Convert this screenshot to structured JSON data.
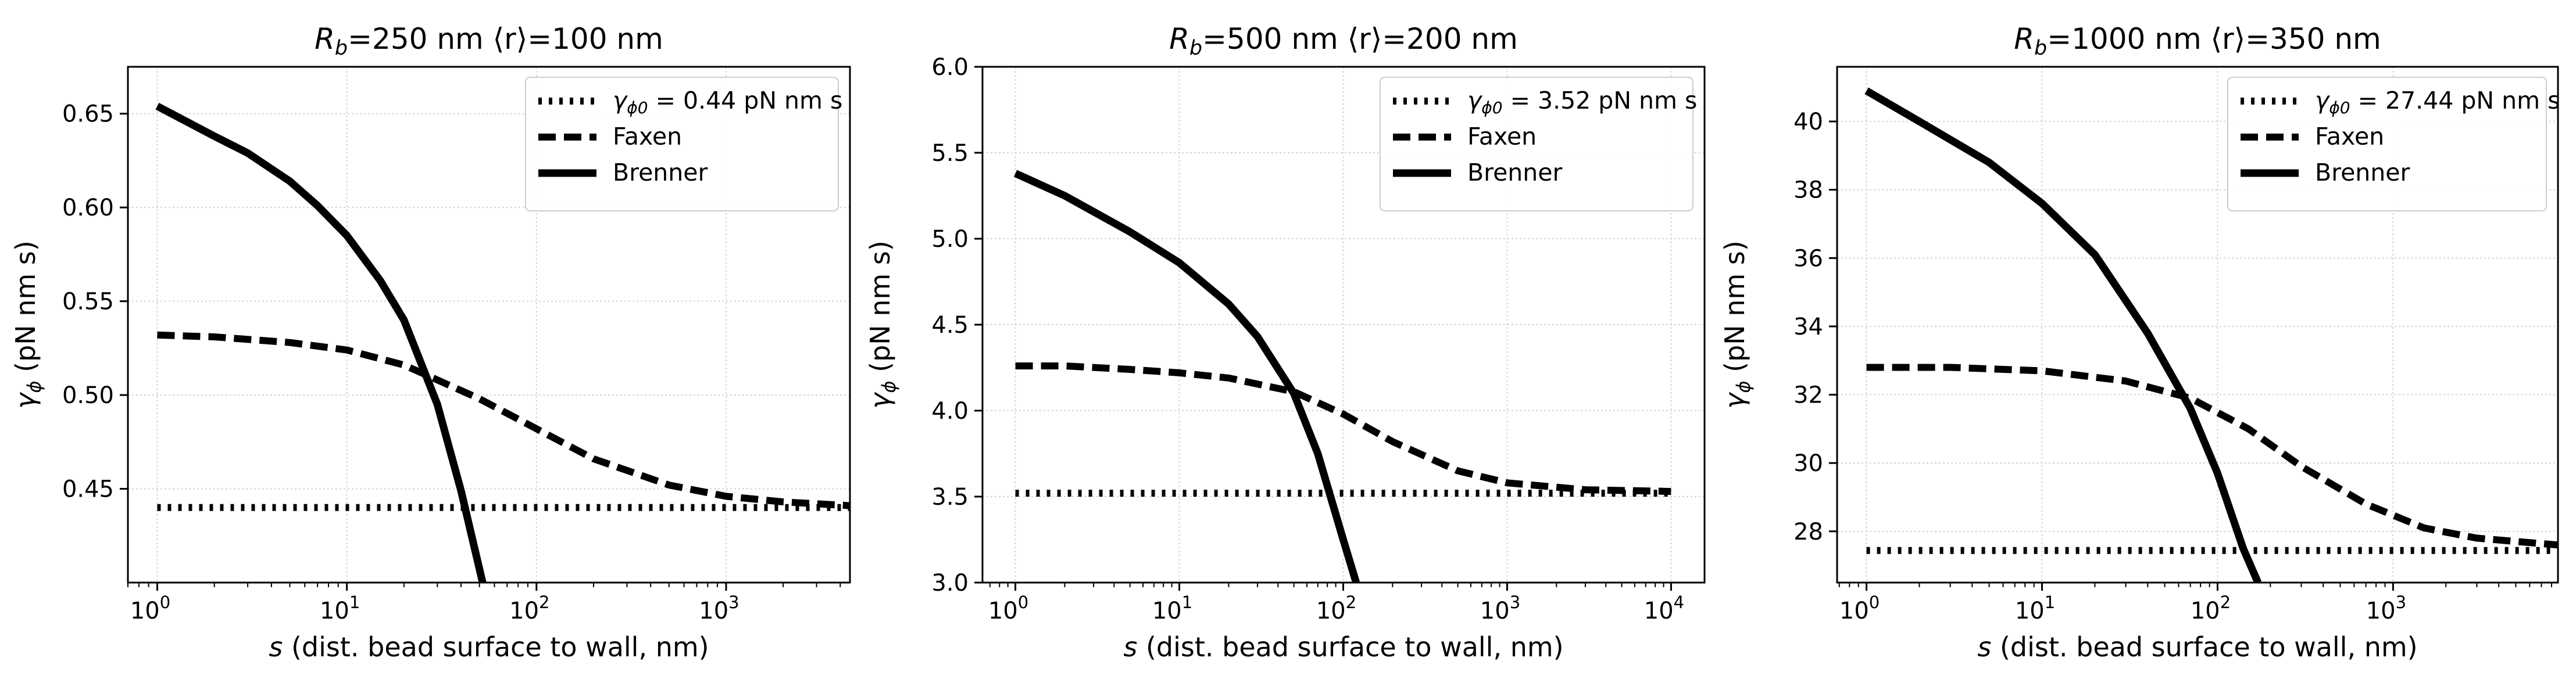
{
  "figure": {
    "titles": [
      "R_b=250 nm  ⟨r⟩=100 nm",
      "R_b=500 nm  ⟨r⟩=200 nm",
      "R_b=1000 nm  ⟨r⟩=350 nm"
    ]
  },
  "chart_data": [
    {
      "type": "line",
      "title": {
        "R": "R",
        "sub": "b",
        "rest": "=250 nm  ⟨r⟩=100 nm"
      },
      "xlabel": {
        "s": "s",
        "rest": " (dist. bead surface to wall, nm)"
      },
      "ylabel": {
        "gamma": "γ",
        "sub": "ϕ",
        "rest": " (pN nm s)"
      },
      "xscale": "log",
      "xlim": [
        0.7,
        4500
      ],
      "ylim": [
        0.4,
        0.675
      ],
      "xticks": [
        {
          "v": 1,
          "e": "0"
        },
        {
          "v": 10,
          "e": "1"
        },
        {
          "v": 100,
          "e": "2"
        },
        {
          "v": 1000,
          "e": "3"
        }
      ],
      "yticks": [
        {
          "v": 0.45,
          "label": "0.45"
        },
        {
          "v": 0.5,
          "label": "0.50"
        },
        {
          "v": 0.55,
          "label": "0.55"
        },
        {
          "v": 0.6,
          "label": "0.60"
        },
        {
          "v": 0.65,
          "label": "0.65"
        }
      ],
      "grid": true,
      "legend_position": "top-right",
      "legend": [
        {
          "style": "dotted",
          "gamma": "γ",
          "sub": "ϕ0",
          "rest": " = 0.44 pN nm s"
        },
        {
          "style": "dashed",
          "label": "Faxen"
        },
        {
          "style": "solid",
          "label": "Brenner"
        }
      ],
      "series": [
        {
          "name": "gamma_phi0",
          "style": "dotted",
          "x": [
            1,
            4500
          ],
          "y": [
            0.44,
            0.44
          ]
        },
        {
          "name": "Faxen",
          "style": "dashed",
          "x": [
            1,
            2,
            5,
            10,
            20,
            50,
            100,
            200,
            500,
            1000,
            2000,
            4500
          ],
          "y": [
            0.532,
            0.531,
            0.528,
            0.524,
            0.516,
            0.498,
            0.482,
            0.466,
            0.452,
            0.446,
            0.443,
            0.441
          ]
        },
        {
          "name": "Brenner",
          "style": "solid",
          "x": [
            1,
            2,
            3,
            5,
            7,
            10,
            15,
            20,
            30,
            40,
            52
          ],
          "y": [
            0.654,
            0.638,
            0.629,
            0.614,
            0.601,
            0.585,
            0.561,
            0.54,
            0.495,
            0.449,
            0.4
          ]
        }
      ]
    },
    {
      "type": "line",
      "title": {
        "R": "R",
        "sub": "b",
        "rest": "=500 nm  ⟨r⟩=200 nm"
      },
      "xlabel": {
        "s": "s",
        "rest": " (dist. bead surface to wall, nm)"
      },
      "ylabel": {
        "gamma": "γ",
        "sub": "ϕ",
        "rest": " (pN nm s)"
      },
      "xscale": "log",
      "xlim": [
        0.63,
        16000
      ],
      "ylim": [
        3.0,
        6.0
      ],
      "xticks": [
        {
          "v": 1,
          "e": "0"
        },
        {
          "v": 10,
          "e": "1"
        },
        {
          "v": 100,
          "e": "2"
        },
        {
          "v": 1000,
          "e": "3"
        },
        {
          "v": 10000,
          "e": "4"
        }
      ],
      "yticks": [
        {
          "v": 3.0,
          "label": "3.0"
        },
        {
          "v": 3.5,
          "label": "3.5"
        },
        {
          "v": 4.0,
          "label": "4.0"
        },
        {
          "v": 4.5,
          "label": "4.5"
        },
        {
          "v": 5.0,
          "label": "5.0"
        },
        {
          "v": 5.5,
          "label": "5.5"
        },
        {
          "v": 6.0,
          "label": "6.0"
        }
      ],
      "grid": true,
      "legend_position": "top-right",
      "legend": [
        {
          "style": "dotted",
          "gamma": "γ",
          "sub": "ϕ0",
          "rest": " = 3.52 pN nm s"
        },
        {
          "style": "dashed",
          "label": "Faxen"
        },
        {
          "style": "solid",
          "label": "Brenner"
        }
      ],
      "series": [
        {
          "name": "gamma_phi0",
          "style": "dotted",
          "x": [
            1,
            10000
          ],
          "y": [
            3.52,
            3.52
          ]
        },
        {
          "name": "Faxen",
          "style": "dashed",
          "x": [
            1,
            2,
            5,
            10,
            20,
            50,
            100,
            200,
            500,
            1000,
            3000,
            10000
          ],
          "y": [
            4.26,
            4.26,
            4.24,
            4.22,
            4.19,
            4.11,
            3.98,
            3.82,
            3.65,
            3.58,
            3.54,
            3.53
          ]
        },
        {
          "name": "Brenner",
          "style": "solid",
          "x": [
            1,
            2,
            5,
            10,
            20,
            30,
            50,
            70,
            100,
            120
          ],
          "y": [
            5.38,
            5.25,
            5.04,
            4.86,
            4.62,
            4.43,
            4.1,
            3.75,
            3.25,
            3.0
          ]
        }
      ]
    },
    {
      "type": "line",
      "title": {
        "R": "R",
        "sub": "b",
        "rest": "=1000 nm  ⟨r⟩=350 nm"
      },
      "xlabel": {
        "s": "s",
        "rest": " (dist. bead surface to wall, nm)"
      },
      "ylabel": {
        "gamma": "γ",
        "sub": "ϕ",
        "rest": " (pN nm s)"
      },
      "xscale": "log",
      "xlim": [
        0.68,
        8700
      ],
      "ylim": [
        26.5,
        41.6
      ],
      "xticks": [
        {
          "v": 1,
          "e": "0"
        },
        {
          "v": 10,
          "e": "1"
        },
        {
          "v": 100,
          "e": "2"
        },
        {
          "v": 1000,
          "e": "3"
        }
      ],
      "yticks": [
        {
          "v": 28,
          "label": "28"
        },
        {
          "v": 30,
          "label": "30"
        },
        {
          "v": 32,
          "label": "32"
        },
        {
          "v": 34,
          "label": "34"
        },
        {
          "v": 36,
          "label": "36"
        },
        {
          "v": 38,
          "label": "38"
        },
        {
          "v": 40,
          "label": "40"
        }
      ],
      "grid": true,
      "legend_position": "top-right",
      "legend": [
        {
          "style": "dotted",
          "gamma": "γ",
          "sub": "ϕ0",
          "rest": " = 27.44 pN nm s"
        },
        {
          "style": "dashed",
          "label": "Faxen"
        },
        {
          "style": "solid",
          "label": "Brenner"
        }
      ],
      "series": [
        {
          "name": "gamma_phi0",
          "style": "dotted",
          "x": [
            1,
            8700
          ],
          "y": [
            27.44,
            27.44
          ]
        },
        {
          "name": "Faxen",
          "style": "dashed",
          "x": [
            1,
            3,
            10,
            30,
            70,
            150,
            300,
            700,
            1500,
            3000,
            8700
          ],
          "y": [
            32.8,
            32.8,
            32.7,
            32.4,
            31.9,
            31.0,
            29.9,
            28.8,
            28.1,
            27.8,
            27.6
          ]
        },
        {
          "name": "Brenner",
          "style": "solid",
          "x": [
            1,
            2,
            5,
            10,
            20,
            40,
            70,
            100,
            140,
            170
          ],
          "y": [
            40.9,
            40.0,
            38.8,
            37.6,
            36.1,
            33.8,
            31.6,
            29.7,
            27.5,
            26.5
          ]
        }
      ]
    }
  ]
}
